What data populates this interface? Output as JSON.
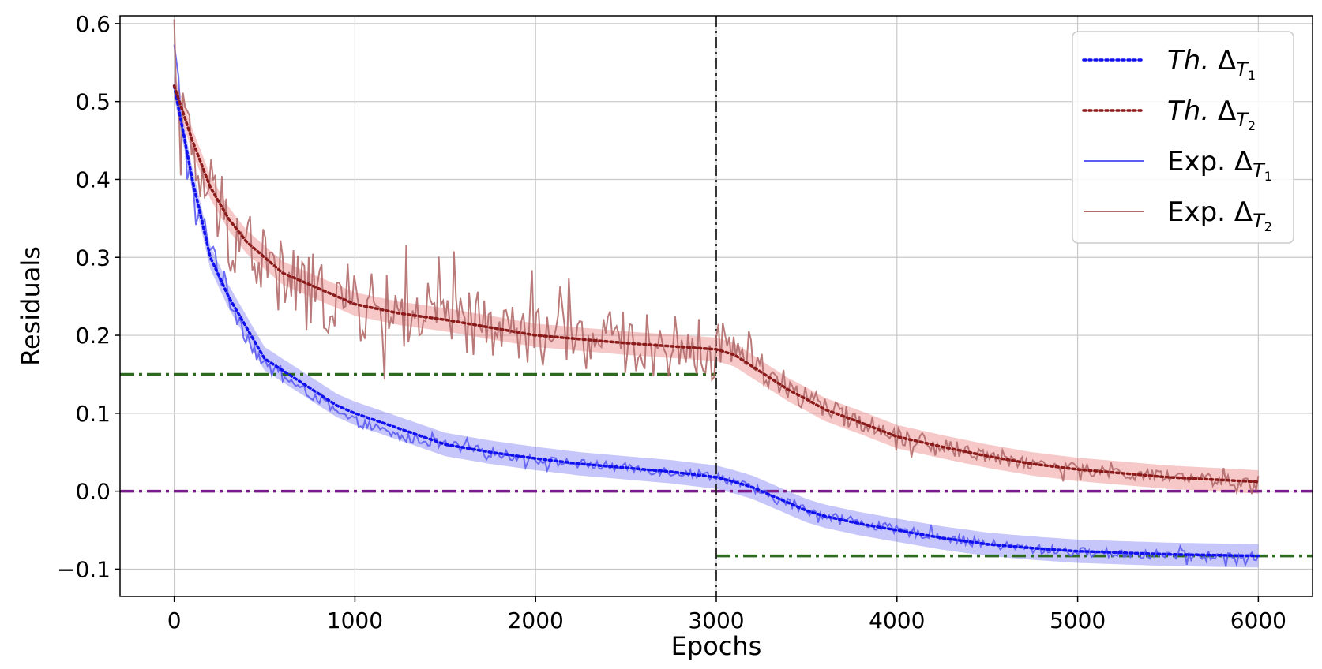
{
  "chart_data": {
    "type": "line",
    "xlabel": "Epochs",
    "ylabel": "Residuals",
    "xlim": [
      -300,
      6300
    ],
    "ylim": [
      -0.135,
      0.61
    ],
    "xticks": [
      0,
      1000,
      2000,
      3000,
      4000,
      5000,
      6000
    ],
    "yticks": [
      -0.1,
      0.0,
      0.1,
      0.2,
      0.3,
      0.4,
      0.5,
      0.6
    ],
    "xtick_labels": [
      "0",
      "1000",
      "2000",
      "3000",
      "4000",
      "5000",
      "6000"
    ],
    "ytick_labels": [
      "−0.1",
      "0.0",
      "0.1",
      "0.2",
      "0.3",
      "0.4",
      "0.5",
      "0.6"
    ],
    "grid": true,
    "legend_position": "top-right",
    "task_switch_epoch": 3000,
    "reference_lines": [
      {
        "y": 0.15,
        "x_range": [
          -300,
          3000
        ],
        "color": "#2d6a1f",
        "style": "dashdot"
      },
      {
        "y": 0.0,
        "x_range": [
          -300,
          6300
        ],
        "color": "#7b1a8a",
        "style": "dashdot"
      },
      {
        "y": -0.083,
        "x_range": [
          3000,
          6300
        ],
        "color": "#2d6a1f",
        "style": "dashdot"
      }
    ],
    "x": [
      0,
      100,
      200,
      300,
      400,
      500,
      600,
      700,
      800,
      900,
      1000,
      1250,
      1500,
      1750,
      2000,
      2250,
      2500,
      2750,
      3000,
      3100,
      3200,
      3300,
      3400,
      3500,
      3600,
      3800,
      4000,
      4250,
      4500,
      4750,
      5000,
      5500,
      6000
    ],
    "series": [
      {
        "name": "Th. ΔT1",
        "legend_text": "Th.",
        "legend_sub": "Δ",
        "legend_index": "1",
        "kind": "theory",
        "color": "#1010ee",
        "values": [
          0.52,
          0.4,
          0.3,
          0.25,
          0.21,
          0.17,
          0.155,
          0.14,
          0.125,
          0.11,
          0.1,
          0.08,
          0.06,
          0.05,
          0.042,
          0.035,
          0.03,
          0.025,
          0.018,
          0.012,
          0.005,
          -0.005,
          -0.015,
          -0.025,
          -0.032,
          -0.042,
          -0.05,
          -0.06,
          -0.068,
          -0.073,
          -0.077,
          -0.081,
          -0.083
        ],
        "band": 0.015
      },
      {
        "name": "Th. ΔT2",
        "legend_text": "Th.",
        "legend_sub": "Δ",
        "legend_index": "2",
        "kind": "theory",
        "color": "#8b1a1a",
        "values": [
          0.52,
          0.45,
          0.39,
          0.35,
          0.32,
          0.3,
          0.28,
          0.27,
          0.26,
          0.25,
          0.24,
          0.228,
          0.22,
          0.21,
          0.2,
          0.195,
          0.19,
          0.186,
          0.182,
          0.175,
          0.16,
          0.145,
          0.13,
          0.118,
          0.105,
          0.088,
          0.07,
          0.057,
          0.045,
          0.035,
          0.028,
          0.018,
          0.012
        ],
        "band": 0.015
      },
      {
        "name": "Exp. ΔT1",
        "legend_text": "Exp.",
        "legend_sub": "Δ",
        "legend_index": "1",
        "kind": "experiment",
        "color": "#5c5cf2",
        "values": [
          0.56,
          0.37,
          0.32,
          0.25,
          0.2,
          0.16,
          0.15,
          0.13,
          0.12,
          0.1,
          0.09,
          0.07,
          0.06,
          0.05,
          0.04,
          0.035,
          0.03,
          0.025,
          0.02,
          0.012,
          0.003,
          -0.008,
          -0.015,
          -0.025,
          -0.03,
          -0.04,
          -0.05,
          -0.058,
          -0.068,
          -0.074,
          -0.078,
          -0.082,
          -0.085
        ],
        "noise": [
          0.03,
          0.025,
          0.02,
          0.015,
          0.012,
          0.009,
          0.008,
          0.007,
          0.007,
          0.006,
          0.006,
          0.006,
          0.006,
          0.006,
          0.006,
          0.006,
          0.006,
          0.006,
          0.006,
          0.006,
          0.006,
          0.006,
          0.006,
          0.006,
          0.006,
          0.006,
          0.006,
          0.006,
          0.006,
          0.006,
          0.006,
          0.006,
          0.006
        ]
      },
      {
        "name": "Exp. ΔT2",
        "legend_text": "Exp.",
        "legend_sub": "Δ",
        "legend_index": "2",
        "kind": "experiment",
        "color": "#b36b6b",
        "values": [
          0.55,
          0.42,
          0.38,
          0.34,
          0.32,
          0.29,
          0.27,
          0.26,
          0.25,
          0.245,
          0.24,
          0.228,
          0.22,
          0.21,
          0.2,
          0.196,
          0.19,
          0.186,
          0.18,
          0.19,
          0.17,
          0.15,
          0.13,
          0.12,
          0.105,
          0.09,
          0.072,
          0.058,
          0.046,
          0.036,
          0.028,
          0.018,
          0.01
        ],
        "noise": [
          0.05,
          0.05,
          0.06,
          0.06,
          0.06,
          0.06,
          0.055,
          0.055,
          0.05,
          0.05,
          0.05,
          0.045,
          0.045,
          0.04,
          0.04,
          0.04,
          0.04,
          0.04,
          0.04,
          0.03,
          0.025,
          0.02,
          0.02,
          0.018,
          0.015,
          0.012,
          0.012,
          0.01,
          0.01,
          0.01,
          0.008,
          0.008,
          0.008
        ]
      }
    ]
  }
}
